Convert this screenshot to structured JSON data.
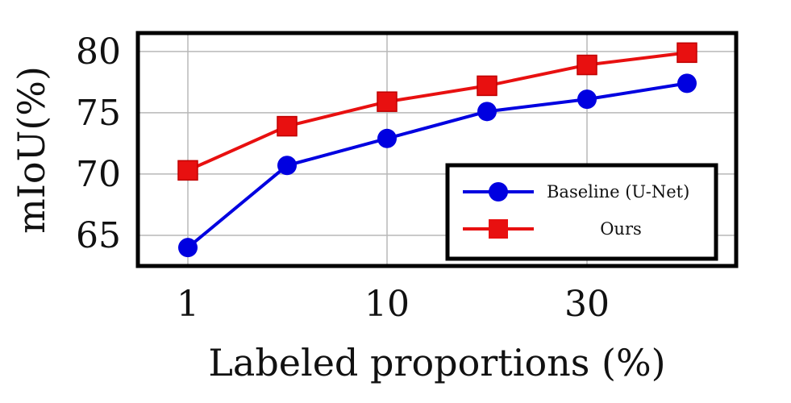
{
  "chart_data": {
    "type": "line",
    "categories": [
      "1",
      "",
      "10",
      "",
      "30",
      ""
    ],
    "xlabel": "Labeled proportions (%)",
    "ylabel": "mIoU(%)",
    "yticks": [
      65,
      70,
      75,
      80
    ],
    "ylim": [
      62.5,
      81.5
    ],
    "grid": true,
    "legend_position": "bottom-right",
    "series": [
      {
        "name": "Baseline (U-Net)",
        "color": "#0000e0",
        "marker": "circle",
        "values": [
          64.0,
          70.7,
          72.9,
          75.1,
          76.1,
          77.4
        ]
      },
      {
        "name": "Ours",
        "color": "#e81010",
        "marker": "square",
        "values": [
          70.3,
          73.9,
          75.9,
          77.2,
          78.9,
          79.9
        ]
      }
    ]
  }
}
